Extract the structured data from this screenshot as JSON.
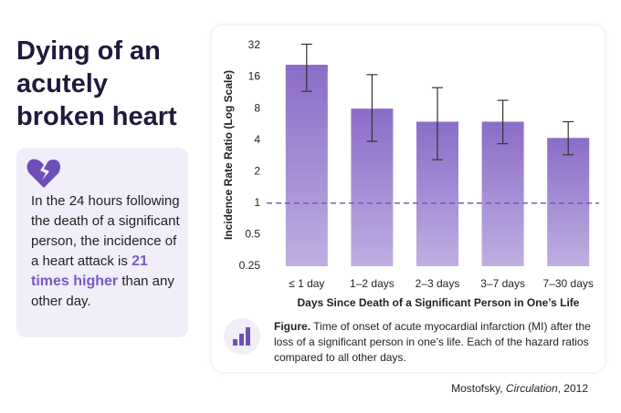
{
  "headline": "Dying of an acutely broken heart",
  "callout": {
    "before": "In the 24 hours following the death of a significant person, the incidence of a heart attack is",
    "highlight": "21 times higher",
    "after": "than any other day."
  },
  "caption": {
    "label": "Figure.",
    "text": "Time of onset of acute myocardial infarction (MI) after the loss of a significant person in one’s life. Each of the hazard ratios compared to all other days."
  },
  "citation": {
    "author": "Mostofsky,",
    "journal": "Circulation",
    "year": ", 2012"
  },
  "chart_data": {
    "type": "bar",
    "y_scale": "log",
    "x_label": "Days Since Death of a Significant Person in One’s Life",
    "y_label": "Incidence Rate Ratio (Log Scale)",
    "categories": [
      "≤ 1 day",
      "1–2 days",
      "2–3 days",
      "3–7 days",
      "7–30 days"
    ],
    "series": [
      {
        "name": "Incidence Rate Ratio",
        "color": "#8b6cc8",
        "values": [
          21,
          8,
          6,
          6,
          4.2
        ],
        "ci_low": [
          11.7,
          3.9,
          2.6,
          3.7,
          2.9
        ],
        "ci_high": [
          33,
          16.9,
          12.7,
          9.6,
          6
        ]
      }
    ],
    "ylim": [
      0.25,
      32
    ],
    "yticks": [
      0.25,
      0.5,
      1,
      2,
      4,
      8,
      16,
      32
    ],
    "reference_line": 1,
    "grid": false
  }
}
